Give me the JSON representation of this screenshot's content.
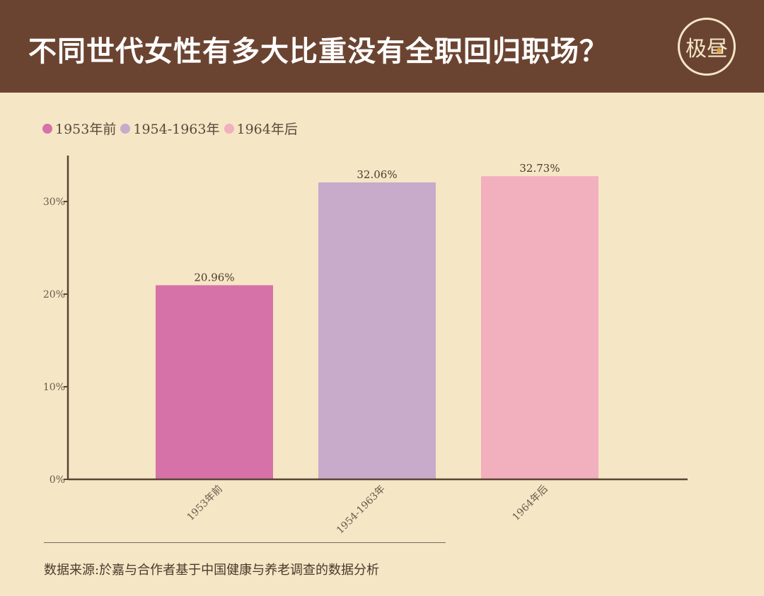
{
  "header": {
    "title": "不同世代女性有多大比重没有全职回归职场？",
    "logo_text": "极昼"
  },
  "chart_data": {
    "type": "bar",
    "title": "不同世代女性有多大比重没有全职回归职场？",
    "categories": [
      "1953年前",
      "1954-1963年",
      "1964年后"
    ],
    "values": [
      20.96,
      32.06,
      32.73
    ],
    "data_labels": [
      "20.96%",
      "32.06%",
      "32.73%"
    ],
    "colors": [
      "#d672a8",
      "#c8aacb",
      "#f2afbd"
    ],
    "legend": [
      "1953年前",
      "1954-1963年",
      "1964年后"
    ],
    "legend_placement": "top-left",
    "yticks": [
      "0%",
      "10%",
      "20%",
      "30%"
    ],
    "ylim": [
      0,
      35
    ],
    "grid": false,
    "xlabel": "",
    "ylabel": ""
  },
  "source": "数据来源:於嘉与合作者基于中国健康与养老调查的数据分析"
}
